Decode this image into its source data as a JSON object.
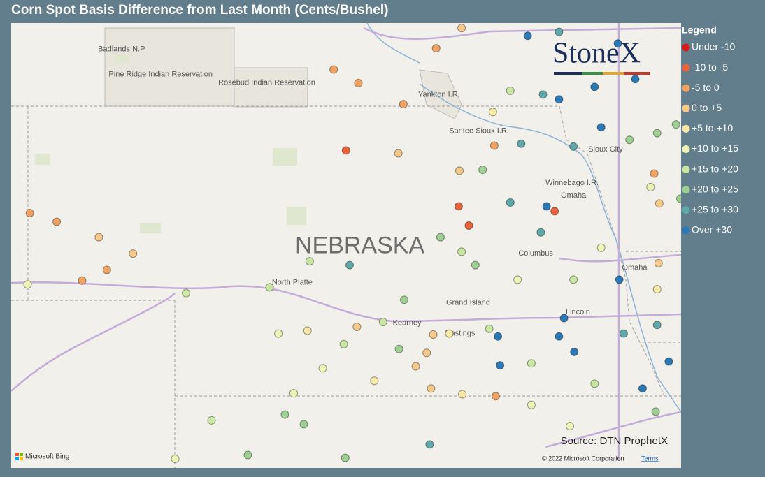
{
  "title": "Corn Spot Basis Difference from Last Month (Cents/Bushel)",
  "logo": "StoneX",
  "source": "Source: DTN ProphetX",
  "attribution": {
    "brand": "Microsoft Bing",
    "copyright": "© 2022 Microsoft Corporation",
    "terms": "Terms"
  },
  "legend": {
    "title": "Legend",
    "items": [
      {
        "label": "Under -10",
        "color": "#d7191c"
      },
      {
        "label": "-10 to -5",
        "color": "#e8633c"
      },
      {
        "label": "-5 to 0",
        "color": "#f0a262"
      },
      {
        "label": "0 to +5",
        "color": "#f6c889"
      },
      {
        "label": "+5 to +10",
        "color": "#f8e9a6"
      },
      {
        "label": "+10 to +15",
        "color": "#eef4b4"
      },
      {
        "label": "+15 to +20",
        "color": "#c9e7a2"
      },
      {
        "label": "+20 to +25",
        "color": "#9dd092"
      },
      {
        "label": "+25 to +30",
        "color": "#5fa9aa"
      },
      {
        "label": "Over +30",
        "color": "#2b79b5"
      }
    ]
  },
  "places": [
    {
      "name": "Badlands N.P.",
      "lon": -102.75,
      "lat": 43.59
    },
    {
      "name": "Pine Ridge Indian Reservation",
      "lon": -102.22,
      "lat": 43.33
    },
    {
      "name": "Rosebud Indian Reservation",
      "lon": -100.76,
      "lat": 43.24
    },
    {
      "name": "Yankton I.R.",
      "lon": -98.39,
      "lat": 43.12
    },
    {
      "name": "Santee Sioux I.R.",
      "lon": -97.84,
      "lat": 42.74
    },
    {
      "name": "Sioux City",
      "lon": -96.1,
      "lat": 42.55
    },
    {
      "name": "Winnebago I.R.",
      "lon": -96.56,
      "lat": 42.2
    },
    {
      "name": "Omaha",
      "lon": -96.54,
      "lat": 42.07
    },
    {
      "name": "North Platte",
      "lon": -100.41,
      "lat": 41.17
    },
    {
      "name": "Columbus",
      "lon": -97.06,
      "lat": 41.47
    },
    {
      "name": "Grand Island",
      "lon": -97.99,
      "lat": 40.96
    },
    {
      "name": "Kearney",
      "lon": -98.83,
      "lat": 40.75
    },
    {
      "name": "Hastings",
      "lon": -98.1,
      "lat": 40.64
    },
    {
      "name": "Lincoln",
      "lon": -96.48,
      "lat": 40.86
    },
    {
      "name": "Omaha",
      "lon": -95.7,
      "lat": 41.32
    }
  ],
  "state_label": {
    "name": "NEBRASKA",
    "lon": -99.48,
    "lat": 41.54
  },
  "points": [
    [
      -104.02,
      41.89,
      2
    ],
    [
      -103.65,
      41.8,
      2
    ],
    [
      -103.07,
      41.64,
      3
    ],
    [
      -102.6,
      41.47,
      3
    ],
    [
      -102.96,
      41.3,
      2
    ],
    [
      -103.3,
      41.19,
      2
    ],
    [
      -104.05,
      41.15,
      5
    ],
    [
      -101.87,
      41.06,
      6
    ],
    [
      -100.72,
      41.12,
      6
    ],
    [
      -99.67,
      42.54,
      1
    ],
    [
      -99.84,
      43.38,
      2
    ],
    [
      -99.5,
      43.24,
      2
    ],
    [
      -98.88,
      43.02,
      2
    ],
    [
      -98.43,
      43.6,
      2
    ],
    [
      -98.95,
      42.51,
      3
    ],
    [
      -98.11,
      42.33,
      3
    ],
    [
      -98.12,
      41.96,
      1
    ],
    [
      -97.98,
      41.76,
      1
    ],
    [
      -97.79,
      42.34,
      7
    ],
    [
      -97.63,
      42.59,
      2
    ],
    [
      -97.26,
      42.61,
      8
    ],
    [
      -97.17,
      43.73,
      9
    ],
    [
      -96.96,
      43.12,
      8
    ],
    [
      -96.74,
      43.07,
      9
    ],
    [
      -96.16,
      42.78,
      9
    ],
    [
      -96.25,
      43.2,
      9
    ],
    [
      -95.93,
      43.65,
      9
    ],
    [
      -95.69,
      43.28,
      9
    ],
    [
      -95.39,
      42.72,
      7
    ],
    [
      -95.43,
      42.3,
      2
    ],
    [
      -95.48,
      42.16,
      5
    ],
    [
      -96.8,
      41.91,
      1
    ],
    [
      -96.99,
      41.69,
      8
    ],
    [
      -96.91,
      41.96,
      9
    ],
    [
      -97.41,
      42.0,
      8
    ],
    [
      -99.62,
      41.35,
      8
    ],
    [
      -100.17,
      41.39,
      6
    ],
    [
      -98.87,
      40.99,
      7
    ],
    [
      -99.16,
      40.76,
      6
    ],
    [
      -98.94,
      40.48,
      7
    ],
    [
      -99.52,
      40.71,
      3
    ],
    [
      -100.2,
      40.67,
      4
    ],
    [
      -100.6,
      40.64,
      5
    ],
    [
      -99.7,
      40.53,
      6
    ],
    [
      -99.99,
      40.28,
      5
    ],
    [
      -100.39,
      40.02,
      5
    ],
    [
      -100.51,
      39.8,
      7
    ],
    [
      -100.25,
      39.7,
      7
    ],
    [
      -101.52,
      39.74,
      6
    ],
    [
      -102.02,
      39.34,
      5
    ],
    [
      -101.02,
      39.38,
      7
    ],
    [
      -99.68,
      39.35,
      7
    ],
    [
      -98.52,
      39.49,
      8
    ],
    [
      -97.61,
      39.99,
      2
    ],
    [
      -98.07,
      40.01,
      4
    ],
    [
      -98.5,
      40.07,
      3
    ],
    [
      -98.56,
      40.44,
      3
    ],
    [
      -98.47,
      40.63,
      3
    ],
    [
      -98.25,
      40.64,
      4
    ],
    [
      -97.58,
      40.61,
      9
    ],
    [
      -97.55,
      40.31,
      9
    ],
    [
      -96.74,
      40.61,
      9
    ],
    [
      -96.67,
      40.8,
      9
    ],
    [
      -96.53,
      40.45,
      9
    ],
    [
      -95.91,
      41.2,
      9
    ],
    [
      -95.85,
      40.64,
      8
    ],
    [
      -95.59,
      40.07,
      9
    ],
    [
      -95.39,
      40.73,
      8
    ],
    [
      -95.23,
      40.35,
      9
    ],
    [
      -95.39,
      41.1,
      4
    ],
    [
      -95.37,
      41.37,
      3
    ],
    [
      -95.36,
      41.99,
      3
    ],
    [
      -95.13,
      42.81,
      7
    ],
    [
      -95.07,
      42.04,
      7
    ],
    [
      -96.25,
      40.12,
      6
    ],
    [
      -97.12,
      40.33,
      6
    ],
    [
      -97.7,
      40.69,
      6
    ],
    [
      -97.31,
      41.2,
      5
    ],
    [
      -96.54,
      41.2,
      6
    ],
    [
      -96.16,
      41.53,
      5
    ],
    [
      -98.08,
      41.49,
      6
    ],
    [
      -98.37,
      41.64,
      7
    ],
    [
      -97.89,
      41.35,
      7
    ],
    [
      -99.28,
      40.15,
      4
    ],
    [
      -98.71,
      40.3,
      3
    ],
    [
      -97.12,
      39.9,
      5
    ],
    [
      -96.59,
      39.68,
      5
    ],
    [
      -95.41,
      39.83,
      7
    ],
    [
      -98.08,
      43.81,
      3
    ],
    [
      -97.65,
      42.94,
      4
    ],
    [
      -97.41,
      43.16,
      6
    ],
    [
      -96.74,
      43.77,
      8
    ],
    [
      -96.54,
      42.58,
      8
    ],
    [
      -95.77,
      42.65,
      7
    ]
  ]
}
